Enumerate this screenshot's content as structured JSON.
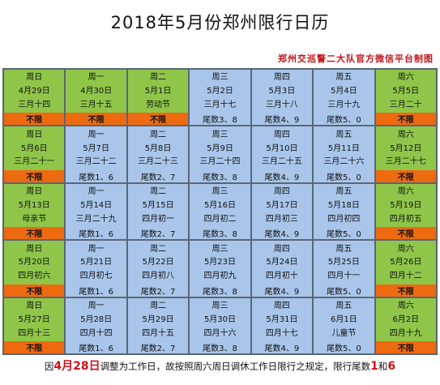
{
  "title": "2018年5月份郑州限行日历",
  "subtitle": "郑州交巡警二大队官方微信平台制图",
  "colors": {
    "free_body": "#8fc64a",
    "free_tail": "#ee6a10",
    "limit_body": "#a9c6ea",
    "footer_highlight": "#d0121b"
  },
  "weeks": [
    [
      {
        "weekday": "周日",
        "date": "4月29日",
        "lunar": "三月十四",
        "tail": "不限",
        "type": "free"
      },
      {
        "weekday": "周一",
        "date": "4月30日",
        "lunar": "三月十五",
        "tail": "不限",
        "type": "free"
      },
      {
        "weekday": "周二",
        "date": "5月1日",
        "lunar": "劳动节",
        "tail": "不限",
        "type": "free"
      },
      {
        "weekday": "周三",
        "date": "5月2日",
        "lunar": "三月十七",
        "tail": "尾数3、8",
        "type": "limit"
      },
      {
        "weekday": "周四",
        "date": "5月3日",
        "lunar": "三月十八",
        "tail": "尾数4、9",
        "type": "limit"
      },
      {
        "weekday": "周五",
        "date": "5月4日",
        "lunar": "三月十九",
        "tail": "尾数5、0",
        "type": "limit"
      },
      {
        "weekday": "周六",
        "date": "5月5日",
        "lunar": "三月二十",
        "tail": "不限",
        "type": "free"
      }
    ],
    [
      {
        "weekday": "周日",
        "date": "5月6日",
        "lunar": "三月二十一",
        "tail": "不限",
        "type": "free"
      },
      {
        "weekday": "周一",
        "date": "5月7日",
        "lunar": "三月二十二",
        "tail": "尾数1、6",
        "type": "limit"
      },
      {
        "weekday": "周二",
        "date": "5月8日",
        "lunar": "三月二十三",
        "tail": "尾数2、7",
        "type": "limit"
      },
      {
        "weekday": "周三",
        "date": "5月9日",
        "lunar": "三月二十四",
        "tail": "尾数3、8",
        "type": "limit"
      },
      {
        "weekday": "周四",
        "date": "5月10日",
        "lunar": "三月二十五",
        "tail": "尾数4、9",
        "type": "limit"
      },
      {
        "weekday": "周五",
        "date": "5月11日",
        "lunar": "三月二十六",
        "tail": "尾数5、0",
        "type": "limit"
      },
      {
        "weekday": "周六",
        "date": "5月12日",
        "lunar": "三月二十七",
        "tail": "不限",
        "type": "free"
      }
    ],
    [
      {
        "weekday": "周日",
        "date": "5月13日",
        "lunar": "母亲节",
        "tail": "不限",
        "type": "free"
      },
      {
        "weekday": "周一",
        "date": "5月14日",
        "lunar": "三月二十九",
        "tail": "尾数1、6",
        "type": "limit"
      },
      {
        "weekday": "周二",
        "date": "5月15日",
        "lunar": "四月初一",
        "tail": "尾数2、7",
        "type": "limit"
      },
      {
        "weekday": "周三",
        "date": "5月16日",
        "lunar": "四月初二",
        "tail": "尾数3、8",
        "type": "limit"
      },
      {
        "weekday": "周四",
        "date": "5月17日",
        "lunar": "四月初三",
        "tail": "尾数4、9",
        "type": "limit"
      },
      {
        "weekday": "周五",
        "date": "5月18日",
        "lunar": "四月初四",
        "tail": "尾数5、0",
        "type": "limit"
      },
      {
        "weekday": "周六",
        "date": "5月19日",
        "lunar": "四月初五",
        "tail": "不限",
        "type": "free"
      }
    ],
    [
      {
        "weekday": "周日",
        "date": "5月20日",
        "lunar": "四月初六",
        "tail": "不限",
        "type": "free"
      },
      {
        "weekday": "周一",
        "date": "5月21日",
        "lunar": "四月初七",
        "tail": "尾数1、6",
        "type": "limit"
      },
      {
        "weekday": "周二",
        "date": "5月22日",
        "lunar": "四月初八",
        "tail": "尾数2、7",
        "type": "limit"
      },
      {
        "weekday": "周三",
        "date": "5月23日",
        "lunar": "四月初九",
        "tail": "尾数3、8",
        "type": "limit"
      },
      {
        "weekday": "周四",
        "date": "5月24日",
        "lunar": "四月初十",
        "tail": "尾数4、9",
        "type": "limit"
      },
      {
        "weekday": "周五",
        "date": "5月25日",
        "lunar": "四月十一",
        "tail": "尾数5、0",
        "type": "limit"
      },
      {
        "weekday": "周六",
        "date": "5月26日",
        "lunar": "四月十二",
        "tail": "不限",
        "type": "free"
      }
    ],
    [
      {
        "weekday": "周日",
        "date": "5月27日",
        "lunar": "四月十三",
        "tail": "不限",
        "type": "free"
      },
      {
        "weekday": "周一",
        "date": "5月28日",
        "lunar": "四月十四",
        "tail": "尾数1、6",
        "type": "limit"
      },
      {
        "weekday": "周二",
        "date": "5月29日",
        "lunar": "四月十五",
        "tail": "尾数2、7",
        "type": "limit"
      },
      {
        "weekday": "周三",
        "date": "5月30日",
        "lunar": "四月十六",
        "tail": "尾数3、8",
        "type": "limit"
      },
      {
        "weekday": "周四",
        "date": "5月31日",
        "lunar": "四月十七",
        "tail": "尾数4、9",
        "type": "limit"
      },
      {
        "weekday": "周五",
        "date": "6月1日",
        "lunar": "儿童节",
        "tail": "尾数5、0",
        "type": "limit"
      },
      {
        "weekday": "周六",
        "date": "6月2日",
        "lunar": "四月十九",
        "tail": "不限",
        "type": "free"
      }
    ]
  ],
  "footer": {
    "part1": "因",
    "highlight1": "4月28日",
    "part2": "调整为工作日，故按照周六周日调休工作日限行之规定，限行尾数",
    "highlight2": "1",
    "part3": "和",
    "highlight3": "6"
  }
}
